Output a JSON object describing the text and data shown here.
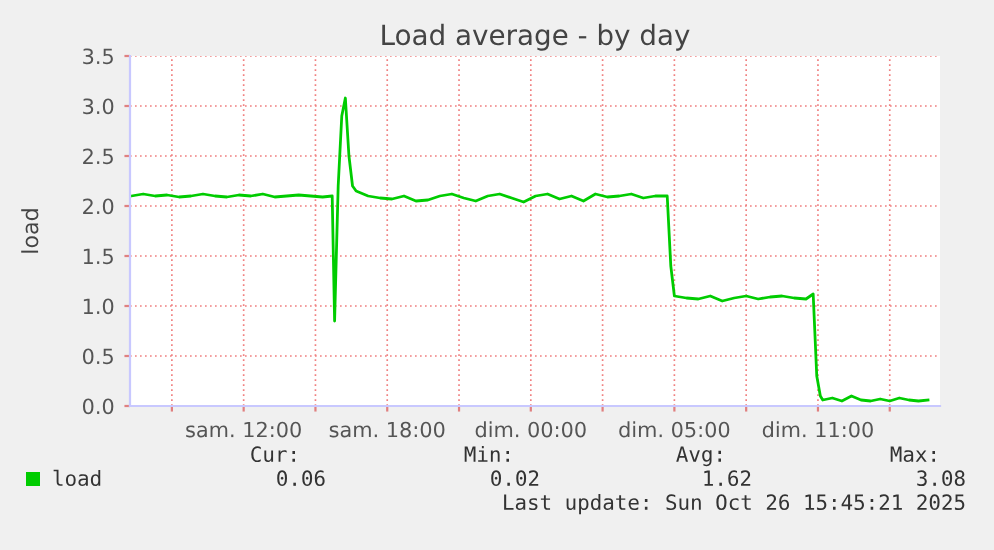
{
  "chart_data": {
    "type": "line",
    "title": "Load average - by day",
    "ylabel": "load",
    "x": [
      "2025-10-25T05:18",
      "2025-10-25T05:48",
      "2025-10-25T06:18",
      "2025-10-25T06:48",
      "2025-10-25T07:18",
      "2025-10-25T07:48",
      "2025-10-25T08:18",
      "2025-10-25T08:48",
      "2025-10-25T09:18",
      "2025-10-25T09:48",
      "2025-10-25T10:18",
      "2025-10-25T10:48",
      "2025-10-25T11:18",
      "2025-10-25T11:48",
      "2025-10-25T12:18",
      "2025-10-25T12:48",
      "2025-10-25T13:18",
      "2025-10-25T13:42",
      "2025-10-25T13:48",
      "2025-10-25T13:57",
      "2025-10-25T14:06",
      "2025-10-25T14:15",
      "2025-10-25T14:24",
      "2025-10-25T14:33",
      "2025-10-25T14:42",
      "2025-10-25T15:12",
      "2025-10-25T15:42",
      "2025-10-25T16:12",
      "2025-10-25T16:42",
      "2025-10-25T17:12",
      "2025-10-25T17:42",
      "2025-10-25T18:12",
      "2025-10-25T18:42",
      "2025-10-25T19:12",
      "2025-10-25T19:42",
      "2025-10-25T20:12",
      "2025-10-25T20:42",
      "2025-10-25T21:12",
      "2025-10-25T21:42",
      "2025-10-25T22:12",
      "2025-10-25T22:42",
      "2025-10-25T23:12",
      "2025-10-25T23:42",
      "2025-10-26T00:12",
      "2025-10-26T00:42",
      "2025-10-26T01:12",
      "2025-10-26T01:42",
      "2025-10-26T02:12",
      "2025-10-26T02:42",
      "2025-10-26T03:12",
      "2025-10-26T03:42",
      "2025-10-26T03:51",
      "2025-10-26T04:00",
      "2025-10-26T04:30",
      "2025-10-26T05:00",
      "2025-10-26T05:30",
      "2025-10-26T06:00",
      "2025-10-26T06:30",
      "2025-10-26T07:00",
      "2025-10-26T07:30",
      "2025-10-26T08:00",
      "2025-10-26T08:30",
      "2025-10-26T09:00",
      "2025-10-26T09:30",
      "2025-10-26T09:48",
      "2025-10-26T09:57",
      "2025-10-26T10:06",
      "2025-10-26T10:12",
      "2025-10-26T10:36",
      "2025-10-26T11:00",
      "2025-10-26T11:24",
      "2025-10-26T11:48",
      "2025-10-26T12:12",
      "2025-10-26T12:36",
      "2025-10-26T13:00",
      "2025-10-26T13:24",
      "2025-10-26T13:48",
      "2025-10-26T14:12",
      "2025-10-26T14:36"
    ],
    "series": [
      {
        "name": "load",
        "color": "#00cc00",
        "values": [
          2.1,
          2.12,
          2.1,
          2.11,
          2.09,
          2.1,
          2.12,
          2.1,
          2.09,
          2.11,
          2.1,
          2.12,
          2.09,
          2.1,
          2.11,
          2.1,
          2.09,
          2.1,
          0.85,
          2.2,
          2.9,
          3.08,
          2.5,
          2.2,
          2.15,
          2.1,
          2.08,
          2.07,
          2.1,
          2.05,
          2.06,
          2.1,
          2.12,
          2.08,
          2.05,
          2.1,
          2.12,
          2.08,
          2.04,
          2.1,
          2.12,
          2.07,
          2.1,
          2.05,
          2.12,
          2.09,
          2.1,
          2.12,
          2.08,
          2.1,
          2.1,
          1.4,
          1.1,
          1.08,
          1.07,
          1.1,
          1.05,
          1.08,
          1.1,
          1.07,
          1.09,
          1.1,
          1.08,
          1.07,
          1.12,
          0.3,
          0.1,
          0.06,
          0.08,
          0.05,
          0.1,
          0.06,
          0.05,
          0.07,
          0.05,
          0.08,
          0.06,
          0.05,
          0.06
        ]
      }
    ],
    "xlim": [
      "2025-10-25T05:15",
      "2025-10-26T15:06"
    ],
    "xticks": [
      {
        "value": "2025-10-25T07:00",
        "label": null
      },
      {
        "value": "2025-10-25T10:00",
        "label": "sam. 12:00"
      },
      {
        "value": "2025-10-25T13:00",
        "label": null
      },
      {
        "value": "2025-10-25T16:00",
        "label": "sam. 18:00"
      },
      {
        "value": "2025-10-25T19:00",
        "label": null
      },
      {
        "value": "2025-10-25T22:00",
        "label": "dim. 00:00"
      },
      {
        "value": "2025-10-26T01:00",
        "label": null
      },
      {
        "value": "2025-10-26T04:00",
        "label": "dim. 05:00"
      },
      {
        "value": "2025-10-26T07:00",
        "label": null
      },
      {
        "value": "2025-10-26T10:00",
        "label": "dim. 11:00"
      },
      {
        "value": "2025-10-26T13:00",
        "label": null
      }
    ],
    "ylim": [
      0,
      3.5
    ],
    "yticks": [
      {
        "value": 0,
        "label": "0.0"
      },
      {
        "value": 0.5,
        "label": "0.5"
      },
      {
        "value": 1,
        "label": "1.0"
      },
      {
        "value": 1.5,
        "label": "1.5"
      },
      {
        "value": 2,
        "label": "2.0"
      },
      {
        "value": 2.5,
        "label": "2.5"
      },
      {
        "value": 3,
        "label": "3.0"
      },
      {
        "value": 3.5,
        "label": "3.5"
      }
    ],
    "grid": true,
    "legend": "bottom left",
    "annotations": [
      "Cur:",
      "Min:",
      "Avg:",
      "Max:",
      "0.06",
      "0.02",
      "1.62",
      "3.08",
      "Last update: Sun Oct 26 15:45:21 2025"
    ]
  }
}
